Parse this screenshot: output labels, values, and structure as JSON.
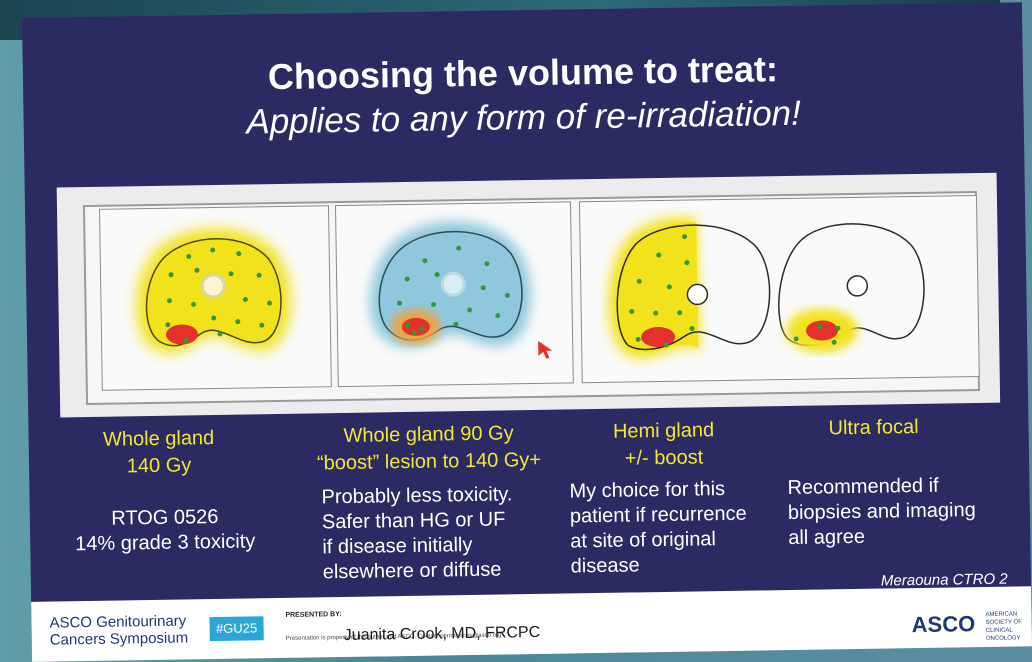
{
  "slide": {
    "title": "Choosing the volume to treat:",
    "subtitle": "Applies to any form of re-irradiation!"
  },
  "columns": [
    {
      "label_line1": "Whole gland",
      "label_line2": "140 Gy",
      "desc": [
        "RTOG 0526",
        "14% grade 3 toxicity"
      ]
    },
    {
      "label_line1": "Whole gland 90 Gy",
      "label_line2": "“boost” lesion to 140 Gy+",
      "desc": [
        "Probably less toxicity.",
        "Safer than HG or UF",
        "if disease initially",
        "elsewhere or diffuse"
      ]
    },
    {
      "label_line1": "Hemi gland",
      "label_line2": "+/- boost",
      "desc": [
        "My choice for this",
        "patient if recurrence",
        "at site of original",
        "disease"
      ]
    },
    {
      "label_line1": "Ultra focal",
      "label_line2": "",
      "desc": [
        "Recommended if",
        "biopsies and imaging",
        "all agree"
      ]
    }
  ],
  "citation": "Meraouna CTRO 2",
  "footer": {
    "org_line1": "ASCO Genitourinary",
    "org_line2": "Cancers Symposium",
    "hashtag": "#GU25",
    "presented_by": "PRESENTED BY:",
    "presenter": "Juanita Crook, MD, FRCPC",
    "fine_print": "Presentation is property of the author and ASCO. Contact permissions@asco.org",
    "brand": "ASCO",
    "brand_sub1": "AMERICAN SOCIETY OF",
    "brand_sub2": "CLINICAL ONCOLOGY"
  },
  "colors": {
    "slide_bg": "#2c2a62",
    "label_yellow": "#f4e633",
    "dose_yellow": "#f2e21b",
    "dose_blue": "#8fc8dc",
    "lesion_red": "#e4312b",
    "seed_green": "#2e9a3a"
  }
}
